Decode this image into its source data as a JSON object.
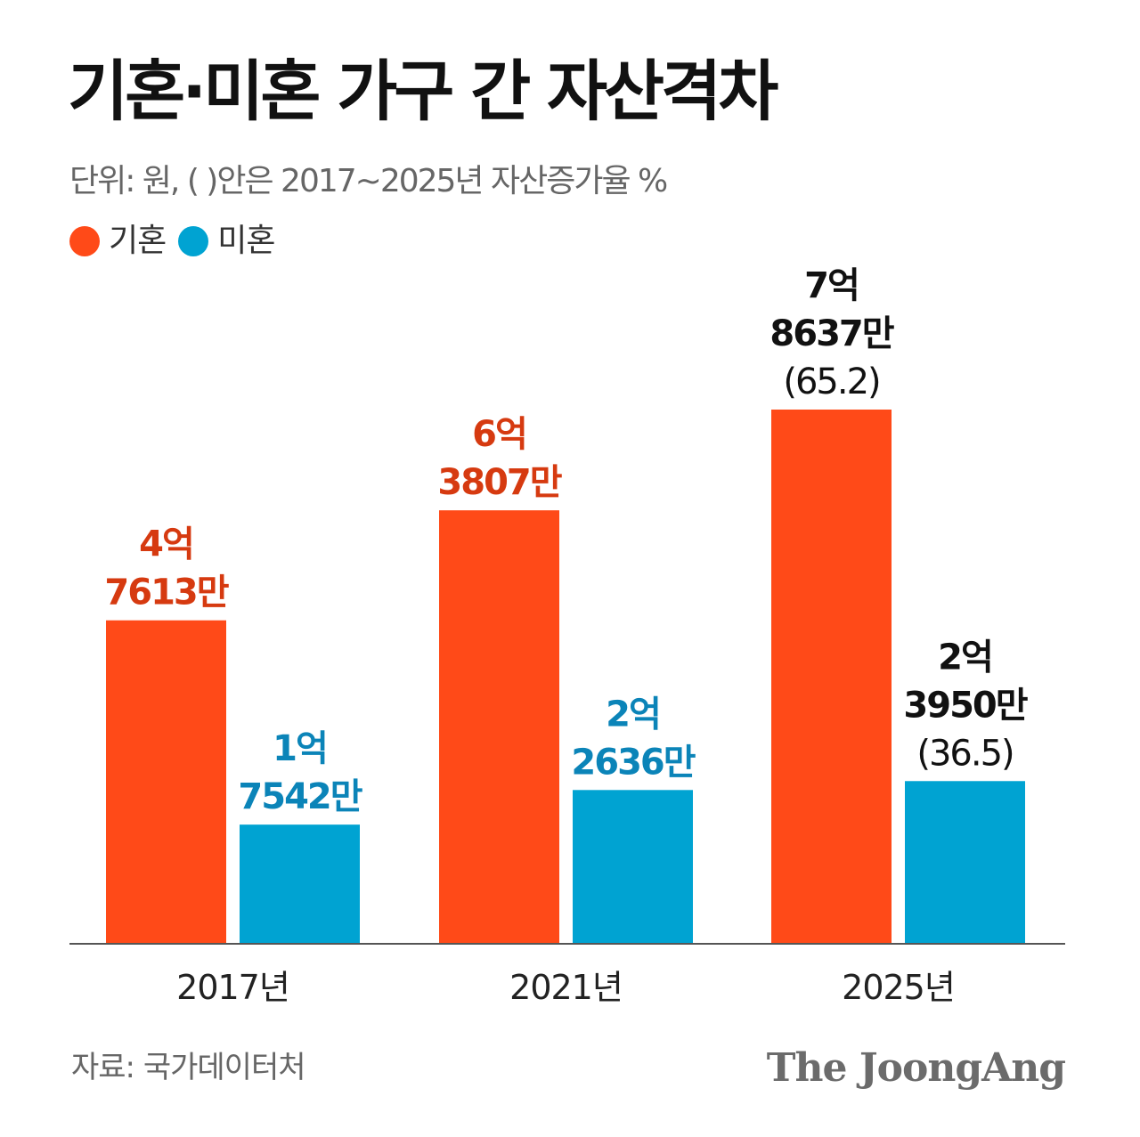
{
  "title": "기혼·미혼 가구 간 자산격차",
  "subtitle": "단위: 원, ( )안은 2017~2025년 자산증가율 %",
  "legend": [
    {
      "label": "기혼",
      "color": "#FF4A18"
    },
    {
      "label": "미혼",
      "color": "#00A3D2"
    }
  ],
  "source": "자료: 국가데이터처",
  "brand": "The JoongAng",
  "colors": {
    "married_label": "#D63A10",
    "single_label": "#0B84B8",
    "highlight_label": "#111111",
    "axis": "#555555",
    "tick": "#222222"
  },
  "chart_data": {
    "type": "bar",
    "categories": [
      "2017년",
      "2021년",
      "2025년"
    ],
    "ylim": [
      0,
      90000
    ],
    "series": [
      {
        "name": "기혼",
        "color": "#FF4A18",
        "values": [
          47613,
          63807,
          78637
        ],
        "labels": [
          [
            "4억",
            "7613만"
          ],
          [
            "6억",
            "3807만"
          ],
          [
            "7억",
            "8637만",
            "(65.2)"
          ]
        ]
      },
      {
        "name": "미혼",
        "color": "#00A3D2",
        "values": [
          17542,
          22636,
          23950
        ],
        "labels": [
          [
            "1억",
            "7542만"
          ],
          [
            "2억",
            "2636만"
          ],
          [
            "2억",
            "3950만",
            "(36.5)"
          ]
        ]
      }
    ]
  }
}
